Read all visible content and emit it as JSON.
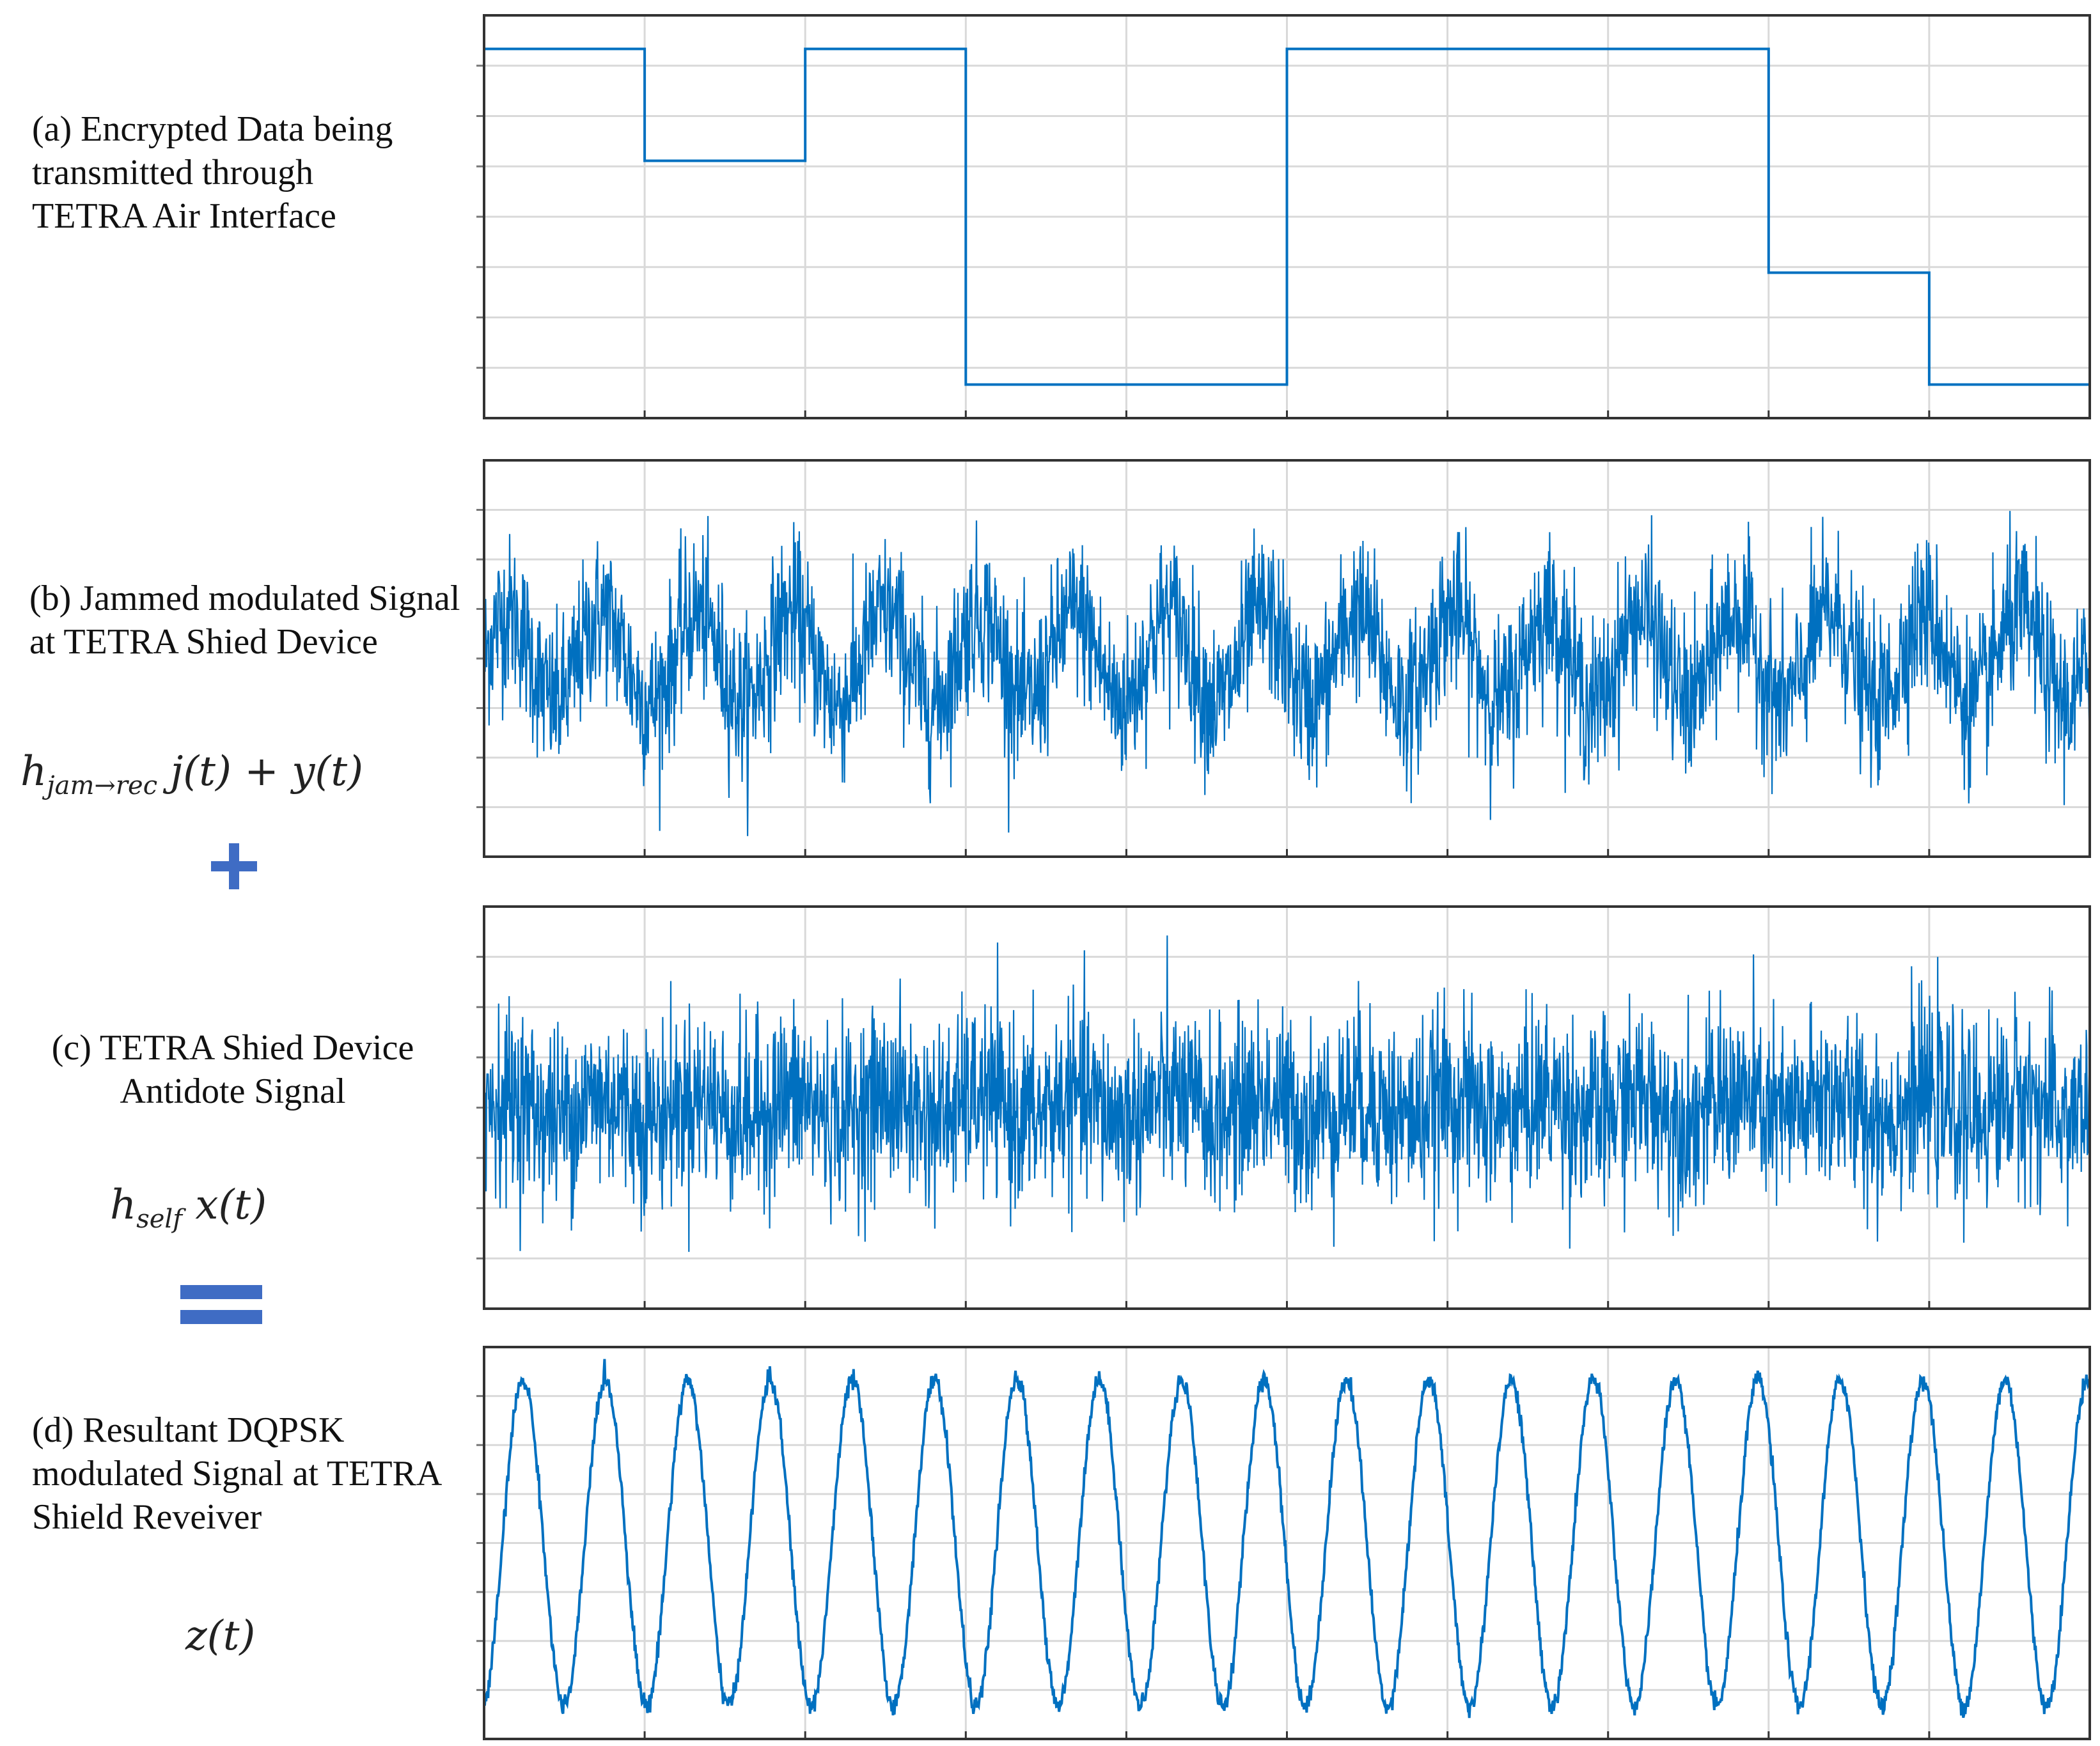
{
  "labels": {
    "a": "(a) Encrypted Data being transmitted through TETRA Air Interface",
    "b": "(b) Jammed modulated Signal at TETRA Shied Device",
    "c": "(c) TETRA Shied Device Antidote Signal",
    "d": "(d) Resultant DQPSK modulated Signal at TETRA Shield Reveiver"
  },
  "formulas": {
    "b_main": "h",
    "b_sub": "jam→rec",
    "b_rest": " j(t) + y(t)",
    "c_main": "h",
    "c_sub": "self",
    "c_rest": " x(t)",
    "d": "z(t)"
  },
  "operators": {
    "plus": "plus",
    "equals": "equals"
  },
  "colors": {
    "signal": "#0070c0",
    "grid": "#d9d9d9",
    "frame": "#333333",
    "operator": "#3f6cc4"
  },
  "chart_data": [
    {
      "type": "line",
      "title": "",
      "xlabel": "",
      "ylabel": "",
      "xlim": [
        0,
        10
      ],
      "ylim": [
        -0.3,
        3.3
      ],
      "x": [
        0,
        1,
        1,
        2,
        2,
        3,
        3,
        5,
        5,
        8,
        8,
        9,
        9,
        10
      ],
      "values": [
        3,
        3,
        2,
        2,
        3,
        3,
        0,
        0,
        3,
        3,
        1,
        1,
        0,
        0
      ],
      "step": true,
      "grid": true
    },
    {
      "type": "line",
      "title": "",
      "xlim": [
        0,
        10
      ],
      "ylim": [
        -4,
        4
      ],
      "description_of_signal": "",
      "noise": {
        "carrier_amplitude": 0.9,
        "carrier_cycles": 17,
        "noise_sigma": 0.8,
        "samples": 3200
      },
      "grid": true
    },
    {
      "type": "line",
      "title": "",
      "xlim": [
        0,
        10
      ],
      "ylim": [
        -4,
        4
      ],
      "noise": {
        "carrier_amplitude": 0.2,
        "carrier_cycles": 17,
        "noise_sigma": 0.9,
        "samples": 3200
      },
      "grid": true
    },
    {
      "type": "line",
      "title": "",
      "xlim": [
        0,
        10
      ],
      "ylim": [
        -1.2,
        1.2
      ],
      "sine": {
        "amplitude": 1,
        "cycles": 19.5,
        "samples": 2400
      },
      "grid": true
    }
  ]
}
